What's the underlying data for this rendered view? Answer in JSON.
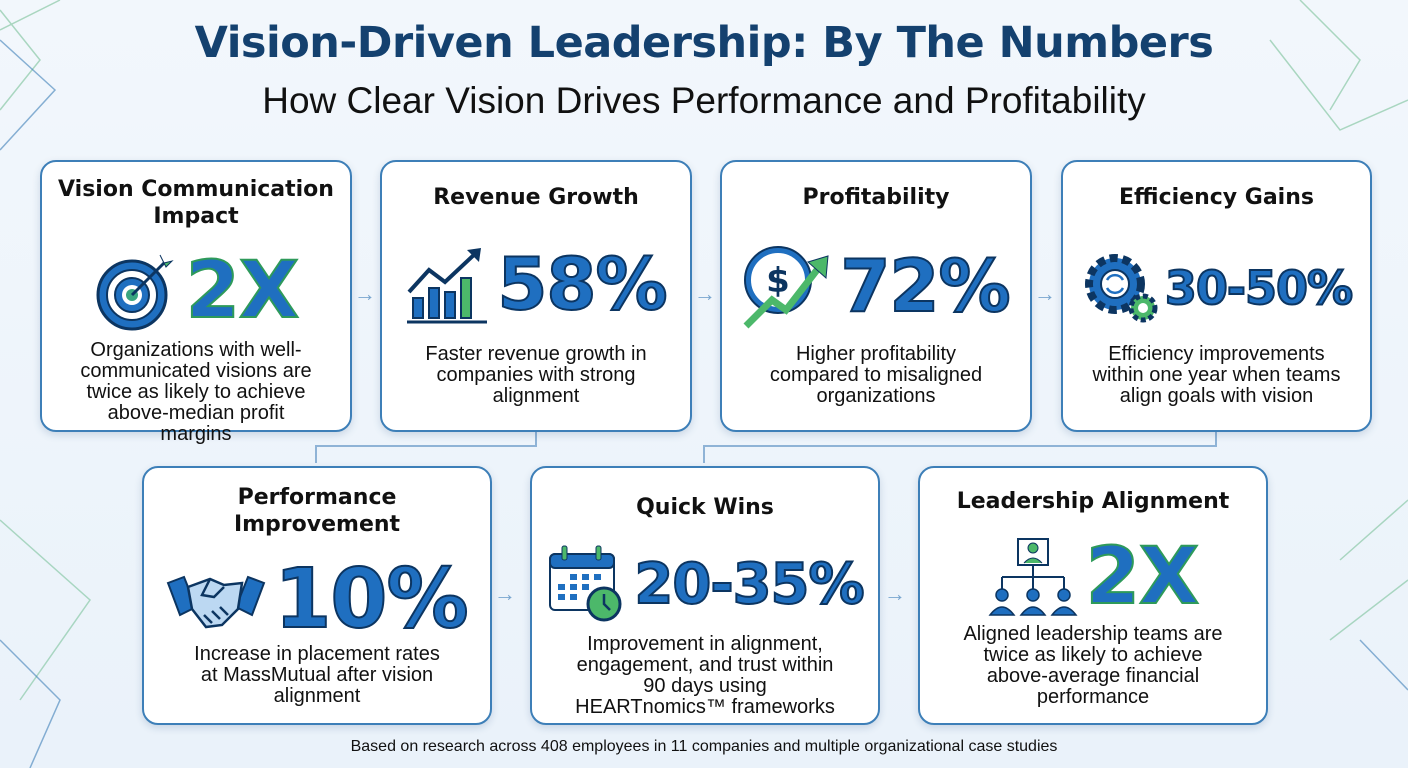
{
  "header": {
    "title": "Vision-Driven Leadership: By The Numbers",
    "subtitle": "How Clear Vision Drives Performance and Profitability"
  },
  "cards": [
    {
      "title": "Vision Communication Impact",
      "stat": "2X",
      "icon": "target-icon",
      "description": "Organizations with well-communicated visions are twice as likely to achieve above-median profit margins"
    },
    {
      "title": "Revenue Growth",
      "stat": "58%",
      "icon": "bar-chart-growth-icon",
      "description": "Faster revenue growth in companies with strong alignment"
    },
    {
      "title": "Profitability",
      "stat": "72%",
      "icon": "dollar-growth-icon",
      "description": "Higher profitability compared to misaligned organizations"
    },
    {
      "title": "Efficiency Gains",
      "stat": "30-50%",
      "icon": "gears-icon",
      "description": "Efficiency improvements within one year when teams align goals with vision"
    },
    {
      "title": "Performance Improvement",
      "stat": "10%",
      "icon": "handshake-icon",
      "description": "Increase in placement rates at MassMutual after vision alignment"
    },
    {
      "title": "Quick Wins",
      "stat": "20-35%",
      "icon": "calendar-clock-icon",
      "description": "Improvement in alignment, engagement, and trust within 90 days using HEARTnomics™ frameworks"
    },
    {
      "title": "Leadership Alignment",
      "stat": "2X",
      "icon": "org-chart-icon",
      "description": "Aligned leadership teams are twice as likely to achieve above-average financial performance"
    }
  ],
  "footer": "Based on research across 408 employees in 11 companies and multiple organizational case studies",
  "colors": {
    "title": "#14416f",
    "stat_fill": "#1f6fc0",
    "accent_green": "#4cb86a",
    "card_border": "#3d7fb8"
  }
}
